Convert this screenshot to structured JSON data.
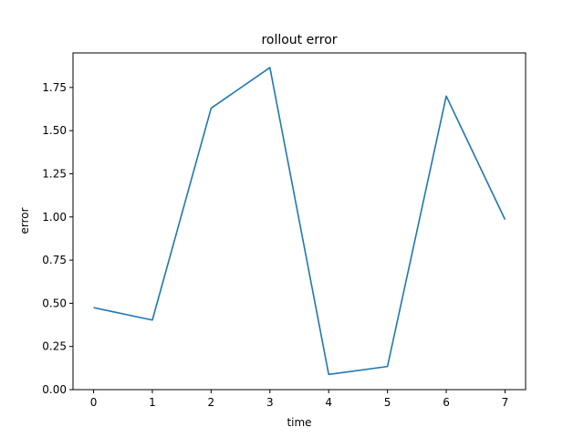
{
  "chart_data": {
    "type": "line",
    "title": "rollout error",
    "xlabel": "time",
    "ylabel": "error",
    "xlim": [
      -0.35,
      7.35
    ],
    "ylim": [
      0,
      1.95
    ],
    "grid": false,
    "x": [
      0,
      1,
      2,
      3,
      4,
      5,
      6,
      7
    ],
    "xticks": [
      0,
      1,
      2,
      3,
      4,
      5,
      6,
      7
    ],
    "xtick_labels": [
      "0",
      "1",
      "2",
      "3",
      "4",
      "5",
      "6",
      "7"
    ],
    "yticks": [
      0,
      0.25,
      0.5,
      0.75,
      1.0,
      1.25,
      1.5,
      1.75
    ],
    "ytick_labels": [
      "0.00",
      "0.25",
      "0.50",
      "0.75",
      "1.00",
      "1.25",
      "1.50",
      "1.75"
    ],
    "series": [
      {
        "values": [
          0.475,
          0.403,
          1.63,
          1.865,
          0.088,
          0.134,
          1.7,
          0.985
        ],
        "color": "#1f77b4"
      }
    ]
  }
}
